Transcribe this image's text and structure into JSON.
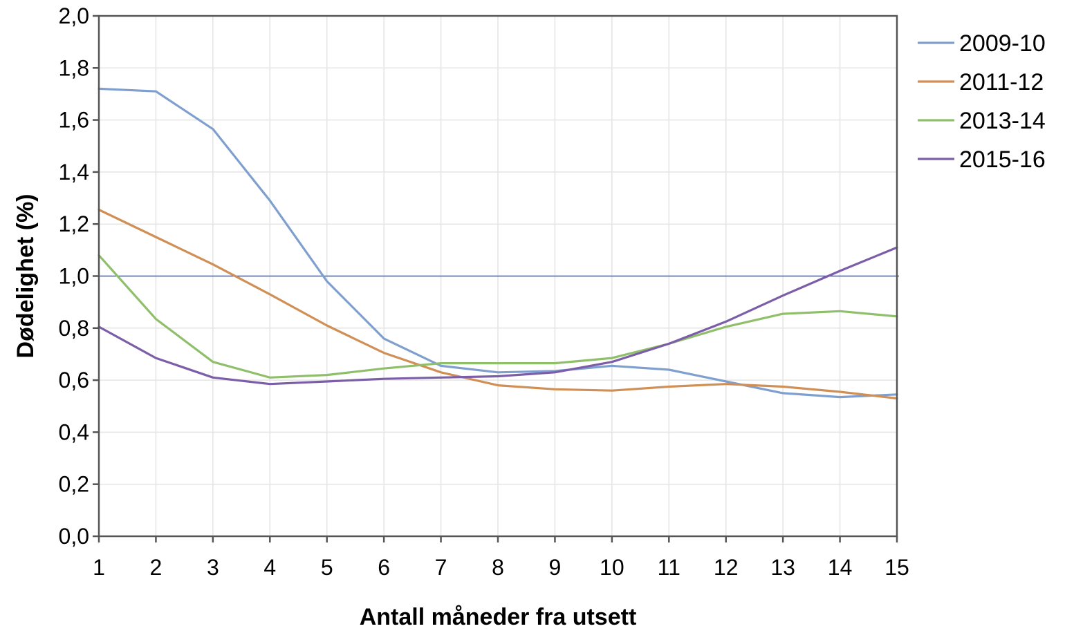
{
  "chart_data": {
    "type": "line",
    "title": "",
    "xlabel": "Antall måneder fra utsett",
    "ylabel": "Dødelighet (%)",
    "x": [
      1,
      2,
      3,
      4,
      5,
      6,
      7,
      8,
      9,
      10,
      11,
      12,
      13,
      14,
      15
    ],
    "xlim": [
      1,
      15
    ],
    "ylim": [
      0,
      2.0
    ],
    "x_ticks": [
      "1",
      "2",
      "3",
      "4",
      "5",
      "6",
      "7",
      "8",
      "9",
      "10",
      "11",
      "12",
      "13",
      "14",
      "15"
    ],
    "y_ticks": [
      0,
      0.2,
      0.4,
      0.6,
      0.8,
      1.0,
      1.2,
      1.4,
      1.6,
      1.8,
      2.0
    ],
    "y_tick_labels": [
      "0,0",
      "0,2",
      "0,4",
      "0,6",
      "0,8",
      "1,0",
      "1,2",
      "1,4",
      "1,6",
      "1,8",
      "2,0"
    ],
    "grid": true,
    "reference_line": {
      "y": 1.0,
      "color": "#3a5fcd"
    },
    "legend": "right",
    "series": [
      {
        "name": "2009-10",
        "color": "#7f9fcf",
        "values": [
          1.72,
          1.71,
          1.565,
          1.29,
          0.98,
          0.76,
          0.655,
          0.63,
          0.635,
          0.655,
          0.64,
          0.595,
          0.55,
          0.535,
          0.545
        ]
      },
      {
        "name": "2011-12",
        "color": "#d08f55",
        "values": [
          1.255,
          1.15,
          1.045,
          0.93,
          0.81,
          0.705,
          0.63,
          0.58,
          0.565,
          0.56,
          0.575,
          0.585,
          0.575,
          0.555,
          0.53
        ]
      },
      {
        "name": "2013-14",
        "color": "#8fbf6a",
        "values": [
          1.08,
          0.835,
          0.67,
          0.61,
          0.62,
          0.645,
          0.665,
          0.665,
          0.665,
          0.685,
          0.74,
          0.805,
          0.855,
          0.865,
          0.845
        ]
      },
      {
        "name": "2015-16",
        "color": "#7b5ea7",
        "values": [
          0.805,
          0.685,
          0.61,
          0.585,
          0.595,
          0.605,
          0.61,
          0.615,
          0.63,
          0.67,
          0.74,
          0.825,
          0.925,
          1.02,
          1.11
        ]
      }
    ]
  }
}
